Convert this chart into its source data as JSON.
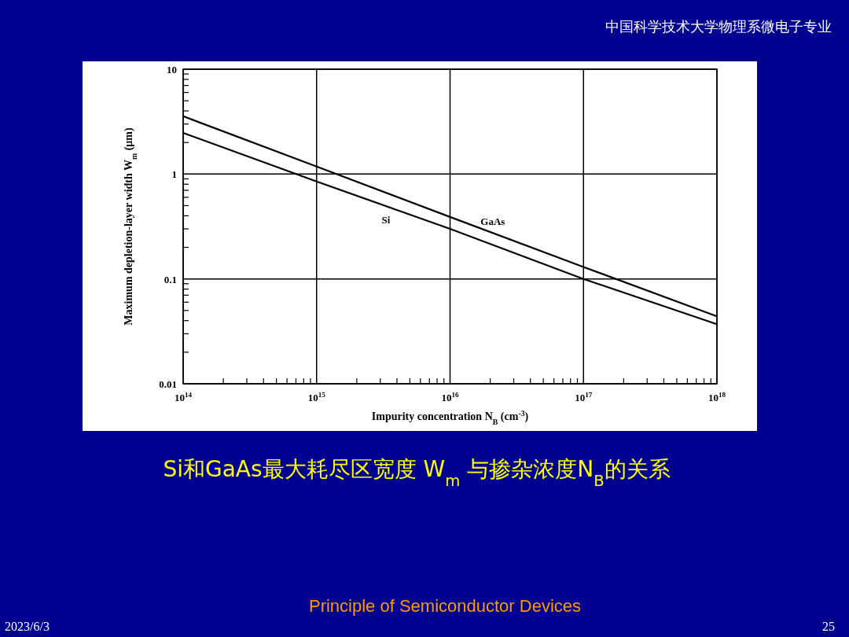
{
  "chart_data": {
    "type": "line",
    "title": "Si和GaAs最大耗尽区宽度 W$_{m}$ 与掺杂浓度N$_{B}$的关系",
    "xlabel": "Impurity concentration N$_{B}$ (cm$^{-3}$)",
    "ylabel": "Maximum depletion-layer width W$_{m}$ (μm)",
    "annotations": [
      "中国科学技术大学物理系微电子专业",
      "Principle of Semiconductor Devices",
      "2023/6/3",
      "25"
    ],
    "log": "xy",
    "grid": true,
    "marker": "none",
    "line_style": "solid",
    "xlim": [
      100000000000000.0,
      1e+18
    ],
    "ylim": [
      0.01,
      10
    ],
    "xticks": [
      {
        "value": 100000000000000.0,
        "label": "10$^{14}$"
      },
      {
        "value": 200000000000000.0,
        "label": null
      },
      {
        "value": 300000000000000.0,
        "label": null
      },
      {
        "value": 400000000000000.0,
        "label": null
      },
      {
        "value": 500000000000000.0,
        "label": null
      },
      {
        "value": 600000000000000.0,
        "label": null
      },
      {
        "value": 700000000000000.0,
        "label": null
      },
      {
        "value": 800000000000000.0,
        "label": null
      },
      {
        "value": 900000000000000.0,
        "label": null
      },
      {
        "value": 1000000000000000.0,
        "label": "10$^{15}$"
      },
      {
        "value": 2000000000000000.0,
        "label": null
      },
      {
        "value": 3000000000000000.0,
        "label": null
      },
      {
        "value": 4000000000000000.0,
        "label": null
      },
      {
        "value": 5000000000000000.0,
        "label": null
      },
      {
        "value": 6000000000000000.0,
        "label": null
      },
      {
        "value": 7000000000000000.0,
        "label": null
      },
      {
        "value": 8000000000000000.0,
        "label": null
      },
      {
        "value": 9000000000000000.0,
        "label": null
      },
      {
        "value": 1e+16,
        "label": "10$^{16}$"
      },
      {
        "value": 2e+16,
        "label": null
      },
      {
        "value": 3e+16,
        "label": null
      },
      {
        "value": 4e+16,
        "label": null
      },
      {
        "value": 5e+16,
        "label": null
      },
      {
        "value": 6e+16,
        "label": null
      },
      {
        "value": 7e+16,
        "label": null
      },
      {
        "value": 8e+16,
        "label": null
      },
      {
        "value": 9e+16,
        "label": null
      },
      {
        "value": 1e+17,
        "label": "10$^{17}$"
      },
      {
        "value": 2e+17,
        "label": null
      },
      {
        "value": 3e+17,
        "label": null
      },
      {
        "value": 4e+17,
        "label": null
      },
      {
        "value": 5e+17,
        "label": null
      },
      {
        "value": 6e+17,
        "label": null
      },
      {
        "value": 7e+17,
        "label": null
      },
      {
        "value": 8e+17,
        "label": null
      },
      {
        "value": 9e+17,
        "label": null
      },
      {
        "value": 1e+18,
        "label": "10$^{18}$"
      }
    ],
    "yticks": [
      0.01,
      {
        "value": 0.02,
        "label": null
      },
      {
        "value": 0.03,
        "label": null
      },
      {
        "value": 0.04,
        "label": null
      },
      {
        "value": 0.05,
        "label": null
      },
      {
        "value": 0.06,
        "label": null
      },
      {
        "value": 0.07,
        "label": null
      },
      {
        "value": 0.08,
        "label": null
      },
      {
        "value": 0.09,
        "label": null
      },
      0.1,
      {
        "value": 0.2,
        "label": null
      },
      {
        "value": 0.3,
        "label": null
      },
      {
        "value": 0.4,
        "label": null
      },
      {
        "value": 0.5,
        "label": null
      },
      {
        "value": 0.6,
        "label": null
      },
      {
        "value": 0.7,
        "label": null
      },
      {
        "value": 0.8,
        "label": null
      },
      {
        "value": 0.9,
        "label": null
      },
      1,
      {
        "value": 2,
        "label": null
      },
      {
        "value": 3,
        "label": null
      },
      {
        "value": 4,
        "label": null
      },
      {
        "value": 5,
        "label": null
      },
      {
        "value": 6,
        "label": null
      },
      {
        "value": 7,
        "label": null
      },
      {
        "value": 8,
        "label": null
      },
      {
        "value": 9,
        "label": null
      },
      10
    ],
    "x": [
      100000000000000.0,
      1000000000000000.0,
      1e+16,
      1e+17,
      1e+18
    ],
    "series": [
      {
        "name": "Si",
        "color": "#000000",
        "values": [
          2.47,
          0.85,
          0.3,
          0.1,
          0.037
        ]
      },
      {
        "name": "GaAs",
        "color": "#000000",
        "values": [
          3.56,
          1.18,
          0.39,
          0.13,
          0.044
        ]
      }
    ]
  }
}
